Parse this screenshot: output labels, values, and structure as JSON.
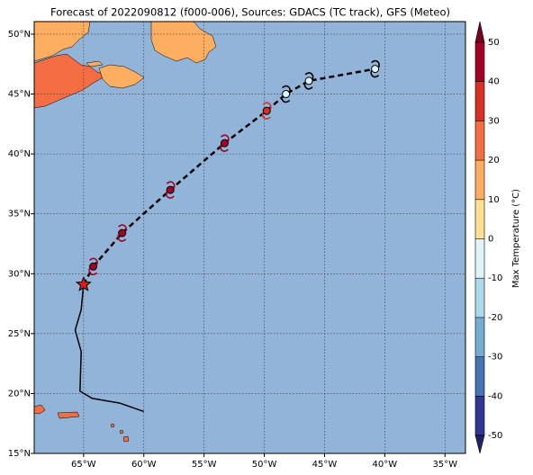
{
  "chart_data": {
    "type": "map",
    "title": "Forecast of 2022090812 (f000-006), Sources: GDACS (TC track), GFS (Meteo)",
    "xlim": [
      -69.1,
      -33.3
    ],
    "ylim": [
      15,
      51.05
    ],
    "xticks": [
      {
        "value": -65,
        "label": "65°W"
      },
      {
        "value": -60,
        "label": "60°W"
      },
      {
        "value": -55,
        "label": "55°W"
      },
      {
        "value": -50,
        "label": "50°W"
      },
      {
        "value": -45,
        "label": "45°W"
      },
      {
        "value": -40,
        "label": "40°W"
      },
      {
        "value": -35,
        "label": "35°W"
      }
    ],
    "yticks": [
      {
        "value": 15,
        "label": "15°N"
      },
      {
        "value": 20,
        "label": "20°N"
      },
      {
        "value": 25,
        "label": "25°N"
      },
      {
        "value": 30,
        "label": "30°N"
      },
      {
        "value": 35,
        "label": "35°N"
      },
      {
        "value": 40,
        "label": "40°N"
      },
      {
        "value": 45,
        "label": "45°N"
      },
      {
        "value": 50,
        "label": "50°N"
      }
    ],
    "grid": true,
    "ocean_color": "#92b4d8",
    "past_track": {
      "x": [
        -60.0,
        -62.0,
        -64.3,
        -65.3,
        -65.2,
        -65.7,
        -65.2,
        -65.0
      ],
      "y": [
        18.5,
        19.2,
        19.6,
        20.2,
        23.5,
        25.3,
        27.0,
        29.1
      ],
      "color": "#000000"
    },
    "current": {
      "x": -65.0,
      "y": 29.1,
      "color": "#e31a1c"
    },
    "forecast": {
      "x": [
        -64.2,
        -61.8,
        -57.8,
        -53.3,
        -49.8,
        -48.2,
        -46.3,
        -40.8
      ],
      "y": [
        30.6,
        33.4,
        37.0,
        40.9,
        43.6,
        45.0,
        46.1,
        47.1
      ],
      "values": [
        45,
        45,
        45,
        45,
        35,
        -5,
        -5,
        -5
      ],
      "color": "#000000"
    },
    "colorbar": {
      "label": "Max Temperature (°C)",
      "levels": [
        -50,
        -40,
        -30,
        -20,
        -10,
        0,
        10,
        20,
        30,
        40,
        50
      ],
      "colors": [
        "#313695",
        "#4575b4",
        "#74add1",
        "#abd9e9",
        "#e0f3f8",
        "#fee090",
        "#fdae61",
        "#f46d43",
        "#d73027",
        "#a50026"
      ],
      "extend_colors": [
        "#20226a",
        "#7a0020"
      ]
    }
  }
}
